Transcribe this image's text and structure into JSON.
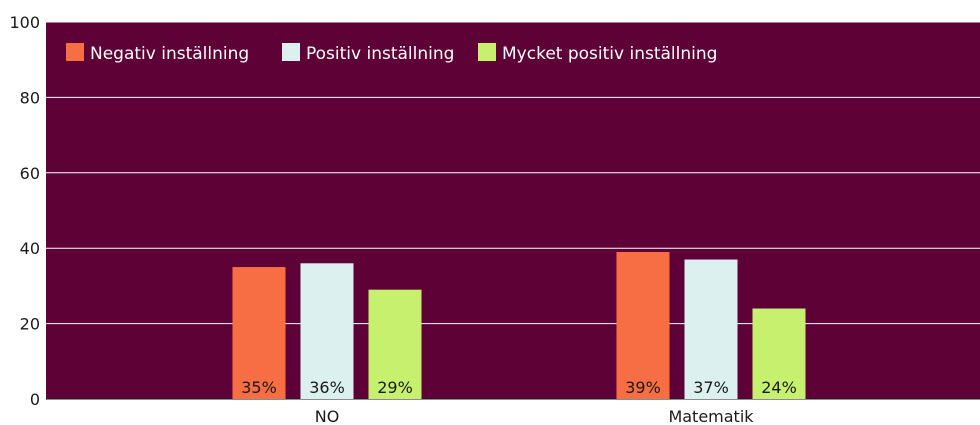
{
  "chart_data": {
    "type": "bar",
    "title": "",
    "xlabel": "",
    "ylabel": "",
    "categories": [
      "NO",
      "Matematik"
    ],
    "series": [
      {
        "name": "Negativ inställning",
        "color": "#f76e45",
        "values": [
          35,
          39
        ],
        "labels": [
          "35%",
          "39%"
        ]
      },
      {
        "name": "Positiv inställning",
        "color": "#dcf0ef",
        "values": [
          36,
          37
        ],
        "labels": [
          "36%",
          "37%"
        ]
      },
      {
        "name": "Mycket positiv inställning",
        "color": "#c7f06e",
        "values": [
          29,
          24
        ],
        "labels": [
          "29%",
          "24%"
        ]
      }
    ],
    "ylim": [
      0,
      100
    ],
    "yticks": [
      0,
      20,
      40,
      60,
      80,
      100
    ],
    "grid": true,
    "legend_position": "top-left",
    "plot_background": "#5e0136",
    "grid_color": "#ffffff"
  }
}
